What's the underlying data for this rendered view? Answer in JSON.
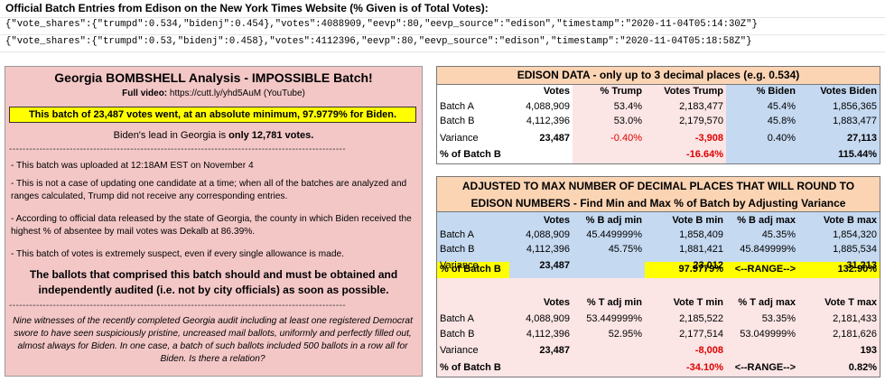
{
  "header": {
    "title": "Official Batch Entries from Edison on the New York Times Website (% Given is of Total Votes):",
    "json_line_1": "{\"vote_shares\":{\"trumpd\":0.534,\"bidenj\":0.454},\"votes\":4088909,\"eevp\":80,\"eevp_source\":\"edison\",\"timestamp\":\"2020-11-04T05:14:30Z\"}",
    "json_line_2": "{\"vote_shares\":{\"trumpd\":0.53,\"bidenj\":0.458},\"votes\":4112396,\"eevp\":80,\"eevp_source\":\"edison\",\"timestamp\":\"2020-11-04T05:18:58Z\"}"
  },
  "left": {
    "title": "Georgia BOMBSHELL Analysis - IMPOSSIBLE Batch!",
    "video_label": "Full video:",
    "video_url": "https://cutt.ly/yhd5AuM",
    "video_source": "(YouTube)",
    "highlight": "This batch of 23,487 votes went, at an absolute minimum, 97.9779% for Biden.",
    "lead_prefix": "Biden's lead in Georgia is",
    "lead_value": "only 12,781 votes.",
    "dashes": "----------------------------------------------------------------------------------------------------",
    "bullets": [
      "- This batch was uploaded at 12:18AM EST on November 4",
      "- This is not a case of updating one candidate at a time; when all of the batches are analyzed and ranges calculated, Trump did not receive any corresponding entries.",
      "- According to official data released by the state of Georgia, the county in which Biden received the highest % of absentee by mail votes was Dekalb at 86.39%.",
      "- This batch of votes is extremely suspect, even if every single allowance is made."
    ],
    "bold_statement": "The ballots that comprised this batch should and must be obtained and independently audited (i.e. not by city officials) as soon as possible.",
    "italic_statement": "Nine witnesses of the recently completed Georgia audit including at least one registered Democrat swore to have seen suspiciously pristine, uncreased mail ballots, uniformly and perfectly filled out, almost always for Biden. In one case, a batch of such ballots included 500 ballots in a row all for Biden. Is there a relation?"
  },
  "edison": {
    "title": "EDISON DATA - only up to 3 decimal places (e.g. 0.534)",
    "headers": [
      "",
      "Votes",
      "% Trump",
      "Votes Trump",
      "% Biden",
      "Votes Biden"
    ],
    "rows": [
      [
        "Batch A",
        "4,088,909",
        "53.4%",
        "2,183,477",
        "45.4%",
        "1,856,365"
      ],
      [
        "Batch B",
        "4,112,396",
        "53.0%",
        "2,179,570",
        "45.8%",
        "1,883,477"
      ],
      [
        "Variance",
        "23,487",
        "-0.40%",
        "-3,908",
        "0.40%",
        "27,113"
      ],
      [
        "% of Batch B",
        "",
        "",
        "-16.64%",
        "",
        "115.44%"
      ]
    ]
  },
  "adjusted": {
    "title_line_1": "ADJUSTED TO MAX NUMBER OF DECIMAL PLACES THAT WILL ROUND TO",
    "title_line_2": "EDISON NUMBERS - Find Min and Max % of Batch by Adjusting Variance",
    "biden_headers": [
      "",
      "Votes",
      "% B adj min",
      "Vote B min",
      "% B adj max",
      "Vote B max"
    ],
    "biden_rows": [
      [
        "Batch A",
        "4,088,909",
        "45.449999%",
        "1,858,409",
        "45.35%",
        "1,854,320"
      ],
      [
        "Batch B",
        "4,112,396",
        "45.75%",
        "1,881,421",
        "45.849999%",
        "1,885,534"
      ],
      [
        "Variance",
        "23,487",
        "",
        "23,012",
        "",
        "31,213"
      ],
      [
        "% of Batch B",
        "",
        "",
        "97.9779%",
        "<--RANGE-->",
        "132.90%"
      ]
    ],
    "trump_headers": [
      "",
      "Votes",
      "% T adj min",
      "Vote T min",
      "% T adj max",
      "Vote T max"
    ],
    "trump_rows": [
      [
        "Batch A",
        "4,088,909",
        "53.449999%",
        "2,185,522",
        "53.35%",
        "2,181,433"
      ],
      [
        "Batch B",
        "4,112,396",
        "52.95%",
        "2,177,514",
        "53.049999%",
        "2,181,626"
      ],
      [
        "Variance",
        "23,487",
        "",
        "-8,008",
        "",
        "193"
      ],
      [
        "% of Batch B",
        "",
        "",
        "-34.10%",
        "<--RANGE-->",
        "0.82%"
      ]
    ]
  },
  "colors": {
    "left_panel": "#f4c7c7",
    "title_bar": "#fbd4b4",
    "trump_cols": "#fbe5e5",
    "biden_cols": "#c5d9f1",
    "highlight": "#ffff00",
    "negative": "#e00000"
  }
}
